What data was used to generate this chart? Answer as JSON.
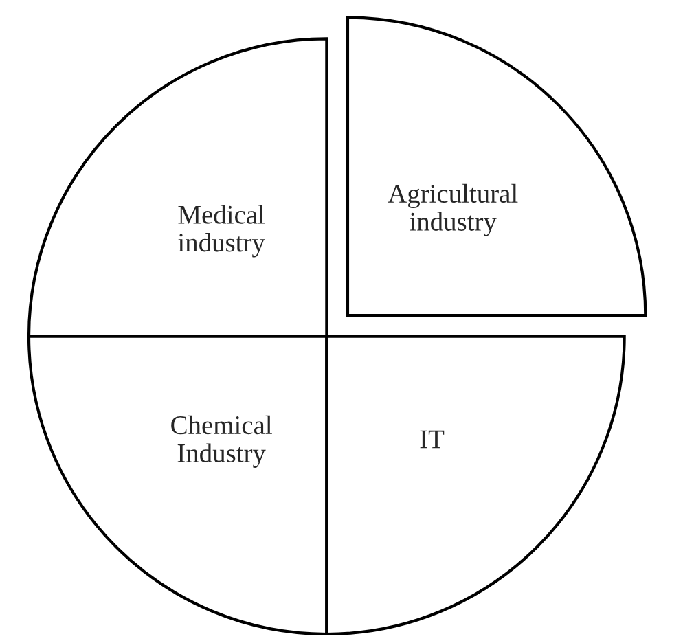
{
  "chart_data": {
    "type": "pie",
    "categories": [
      "Agricultural\nindustry",
      "Medical\nindustry",
      "Chemical\nIndustry",
      "IT"
    ],
    "values": [
      25,
      25,
      25,
      25
    ],
    "colors": [
      "#ffffff",
      "#ffffff",
      "#ffffff",
      "#ffffff"
    ]
  }
}
